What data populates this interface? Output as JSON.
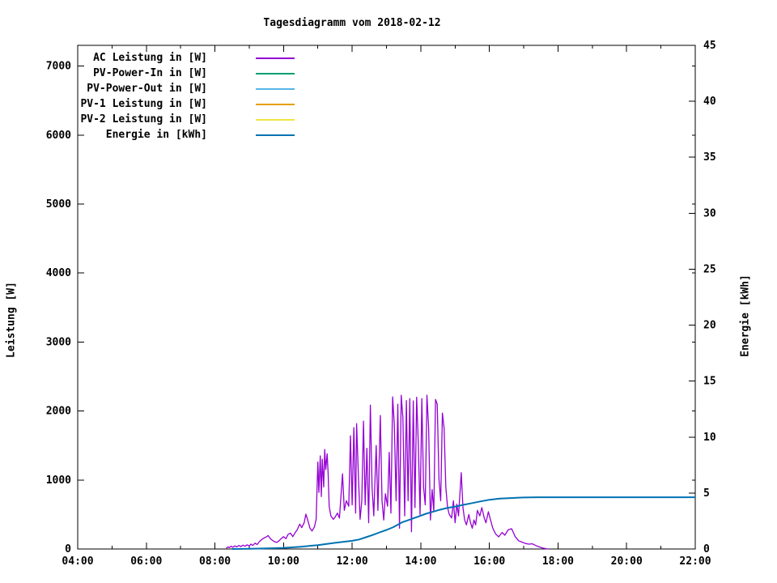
{
  "window": {
    "background": "#ffffff"
  },
  "chart_data": {
    "type": "line",
    "title": "Tagesdiagramm vom 2018-02-12",
    "x_axis": {
      "min": 4,
      "max": 22,
      "major_step_hours": 2,
      "minor_step_hours": 1,
      "tick_labels": [
        "04:00",
        "06:00",
        "08:00",
        "10:00",
        "12:00",
        "14:00",
        "16:00",
        "18:00",
        "20:00",
        "22:00"
      ]
    },
    "y_axis": {
      "label": "Leistung [W]",
      "min": 0,
      "max": 7300,
      "tick_min": 0,
      "tick_max": 7000,
      "tick_step": 1000,
      "tick_labels": [
        "0",
        "1000",
        "2000",
        "3000",
        "4000",
        "5000",
        "6000",
        "7000"
      ]
    },
    "y2_axis": {
      "label": "Energie [kWh]",
      "min": 0,
      "max": 45,
      "tick_step": 5,
      "tick_labels": [
        "0",
        "5",
        "10",
        "15",
        "20",
        "25",
        "30",
        "35",
        "40",
        "45"
      ]
    },
    "legend_position": "top-left",
    "grid": false,
    "series": [
      {
        "name": "AC Leistung in [W]",
        "color": "#9400d3",
        "axis": "y1",
        "points": [
          [
            8.33,
            10
          ],
          [
            8.38,
            30
          ],
          [
            8.42,
            20
          ],
          [
            8.47,
            40
          ],
          [
            8.52,
            25
          ],
          [
            8.58,
            45
          ],
          [
            8.63,
            30
          ],
          [
            8.7,
            50
          ],
          [
            8.75,
            35
          ],
          [
            8.82,
            55
          ],
          [
            8.88,
            40
          ],
          [
            8.93,
            60
          ],
          [
            9.0,
            45
          ],
          [
            9.05,
            70
          ],
          [
            9.1,
            50
          ],
          [
            9.17,
            85
          ],
          [
            9.23,
            65
          ],
          [
            9.3,
            110
          ],
          [
            9.37,
            140
          ],
          [
            9.43,
            160
          ],
          [
            9.5,
            176
          ],
          [
            9.55,
            195
          ],
          [
            9.6,
            160
          ],
          [
            9.65,
            135
          ],
          [
            9.72,
            110
          ],
          [
            9.8,
            95
          ],
          [
            9.87,
            120
          ],
          [
            9.93,
            150
          ],
          [
            10.0,
            180
          ],
          [
            10.07,
            150
          ],
          [
            10.13,
            210
          ],
          [
            10.2,
            230
          ],
          [
            10.27,
            180
          ],
          [
            10.33,
            230
          ],
          [
            10.4,
            280
          ],
          [
            10.47,
            360
          ],
          [
            10.53,
            310
          ],
          [
            10.6,
            380
          ],
          [
            10.65,
            505
          ],
          [
            10.7,
            430
          ],
          [
            10.77,
            300
          ],
          [
            10.83,
            260
          ],
          [
            10.9,
            320
          ],
          [
            10.95,
            430
          ],
          [
            11.0,
            1260
          ],
          [
            11.03,
            820
          ],
          [
            11.07,
            1350
          ],
          [
            11.1,
            760
          ],
          [
            11.13,
            1300
          ],
          [
            11.17,
            900
          ],
          [
            11.2,
            1442
          ],
          [
            11.23,
            1150
          ],
          [
            11.27,
            1380
          ],
          [
            11.3,
            1100
          ],
          [
            11.33,
            620
          ],
          [
            11.38,
            480
          ],
          [
            11.45,
            430
          ],
          [
            11.5,
            460
          ],
          [
            11.57,
            520
          ],
          [
            11.63,
            450
          ],
          [
            11.72,
            1090
          ],
          [
            11.77,
            560
          ],
          [
            11.83,
            700
          ],
          [
            11.9,
            620
          ],
          [
            11.95,
            1641
          ],
          [
            12.0,
            640
          ],
          [
            12.05,
            1758
          ],
          [
            12.1,
            520
          ],
          [
            12.13,
            1817
          ],
          [
            12.18,
            1100
          ],
          [
            12.23,
            430
          ],
          [
            12.28,
            700
          ],
          [
            12.33,
            1852
          ],
          [
            12.38,
            640
          ],
          [
            12.43,
            1460
          ],
          [
            12.48,
            380
          ],
          [
            12.53,
            2086
          ],
          [
            12.58,
            900
          ],
          [
            12.63,
            480
          ],
          [
            12.7,
            1500
          ],
          [
            12.75,
            560
          ],
          [
            12.82,
            1934
          ],
          [
            12.87,
            700
          ],
          [
            12.92,
            420
          ],
          [
            12.97,
            800
          ],
          [
            13.03,
            620
          ],
          [
            13.08,
            1400
          ],
          [
            13.13,
            520
          ],
          [
            13.18,
            2204
          ],
          [
            13.23,
            1800
          ],
          [
            13.28,
            700
          ],
          [
            13.33,
            2100
          ],
          [
            13.38,
            300
          ],
          [
            13.43,
            2227
          ],
          [
            13.48,
            1900
          ],
          [
            13.53,
            480
          ],
          [
            13.58,
            2150
          ],
          [
            13.63,
            700
          ],
          [
            13.68,
            2180
          ],
          [
            13.73,
            250
          ],
          [
            13.78,
            2145
          ],
          [
            13.83,
            600
          ],
          [
            13.88,
            2200
          ],
          [
            13.93,
            1500
          ],
          [
            13.98,
            500
          ],
          [
            14.03,
            2180
          ],
          [
            14.08,
            900
          ],
          [
            14.13,
            640
          ],
          [
            14.18,
            2230
          ],
          [
            14.23,
            1750
          ],
          [
            14.28,
            420
          ],
          [
            14.33,
            860
          ],
          [
            14.38,
            550
          ],
          [
            14.43,
            2168
          ],
          [
            14.48,
            2100
          ],
          [
            14.53,
            1000
          ],
          [
            14.58,
            700
          ],
          [
            14.63,
            1970
          ],
          [
            14.68,
            1750
          ],
          [
            14.73,
            900
          ],
          [
            14.78,
            600
          ],
          [
            14.83,
            500
          ],
          [
            14.9,
            450
          ],
          [
            14.95,
            700
          ],
          [
            15.0,
            380
          ],
          [
            15.05,
            650
          ],
          [
            15.1,
            480
          ],
          [
            15.18,
            1106
          ],
          [
            15.23,
            600
          ],
          [
            15.28,
            420
          ],
          [
            15.33,
            350
          ],
          [
            15.4,
            500
          ],
          [
            15.45,
            380
          ],
          [
            15.5,
            300
          ],
          [
            15.55,
            420
          ],
          [
            15.6,
            350
          ],
          [
            15.65,
            560
          ],
          [
            15.72,
            480
          ],
          [
            15.78,
            600
          ],
          [
            15.85,
            450
          ],
          [
            15.9,
            380
          ],
          [
            15.97,
            540
          ],
          [
            16.03,
            430
          ],
          [
            16.1,
            300
          ],
          [
            16.18,
            220
          ],
          [
            16.27,
            176
          ],
          [
            16.37,
            240
          ],
          [
            16.45,
            200
          ],
          [
            16.55,
            280
          ],
          [
            16.65,
            293
          ],
          [
            16.75,
            180
          ],
          [
            16.85,
            120
          ],
          [
            16.95,
            100
          ],
          [
            17.05,
            80
          ],
          [
            17.15,
            70
          ],
          [
            17.25,
            75
          ],
          [
            17.35,
            50
          ],
          [
            17.45,
            30
          ],
          [
            17.55,
            15
          ],
          [
            17.65,
            5
          ],
          [
            17.72,
            0
          ]
        ]
      },
      {
        "name": "PV-Power-In in [W]",
        "color": "#009e73",
        "axis": "y1",
        "points": []
      },
      {
        "name": "PV-Power-Out in [W]",
        "color": "#56b4e9",
        "axis": "y1",
        "points": []
      },
      {
        "name": "PV-1 Leistung in [W]",
        "color": "#e69f00",
        "axis": "y1",
        "points": []
      },
      {
        "name": "PV-2 Leistung in [W]",
        "color": "#f0e442",
        "axis": "y1",
        "points": []
      },
      {
        "name": "Energie in [kWh]",
        "color": "#0072b2",
        "axis": "y2",
        "points": [
          [
            8.5,
            0
          ],
          [
            9.0,
            0.02
          ],
          [
            9.5,
            0.05
          ],
          [
            10.0,
            0.1
          ],
          [
            10.5,
            0.2
          ],
          [
            11.0,
            0.35
          ],
          [
            11.5,
            0.55
          ],
          [
            12.0,
            0.73
          ],
          [
            12.2,
            0.85
          ],
          [
            12.4,
            1.05
          ],
          [
            12.6,
            1.25
          ],
          [
            12.8,
            1.48
          ],
          [
            13.0,
            1.7
          ],
          [
            13.2,
            1.95
          ],
          [
            13.47,
            2.4
          ],
          [
            13.7,
            2.65
          ],
          [
            13.93,
            2.9
          ],
          [
            14.15,
            3.15
          ],
          [
            14.35,
            3.32
          ],
          [
            14.55,
            3.5
          ],
          [
            14.75,
            3.65
          ],
          [
            15.02,
            3.8
          ],
          [
            15.25,
            3.95
          ],
          [
            15.5,
            4.1
          ],
          [
            15.73,
            4.25
          ],
          [
            16.0,
            4.4
          ],
          [
            16.3,
            4.5
          ],
          [
            16.62,
            4.55
          ],
          [
            17.0,
            4.6
          ],
          [
            17.4,
            4.62
          ],
          [
            18.0,
            4.62
          ],
          [
            22.0,
            4.62
          ]
        ]
      }
    ]
  }
}
